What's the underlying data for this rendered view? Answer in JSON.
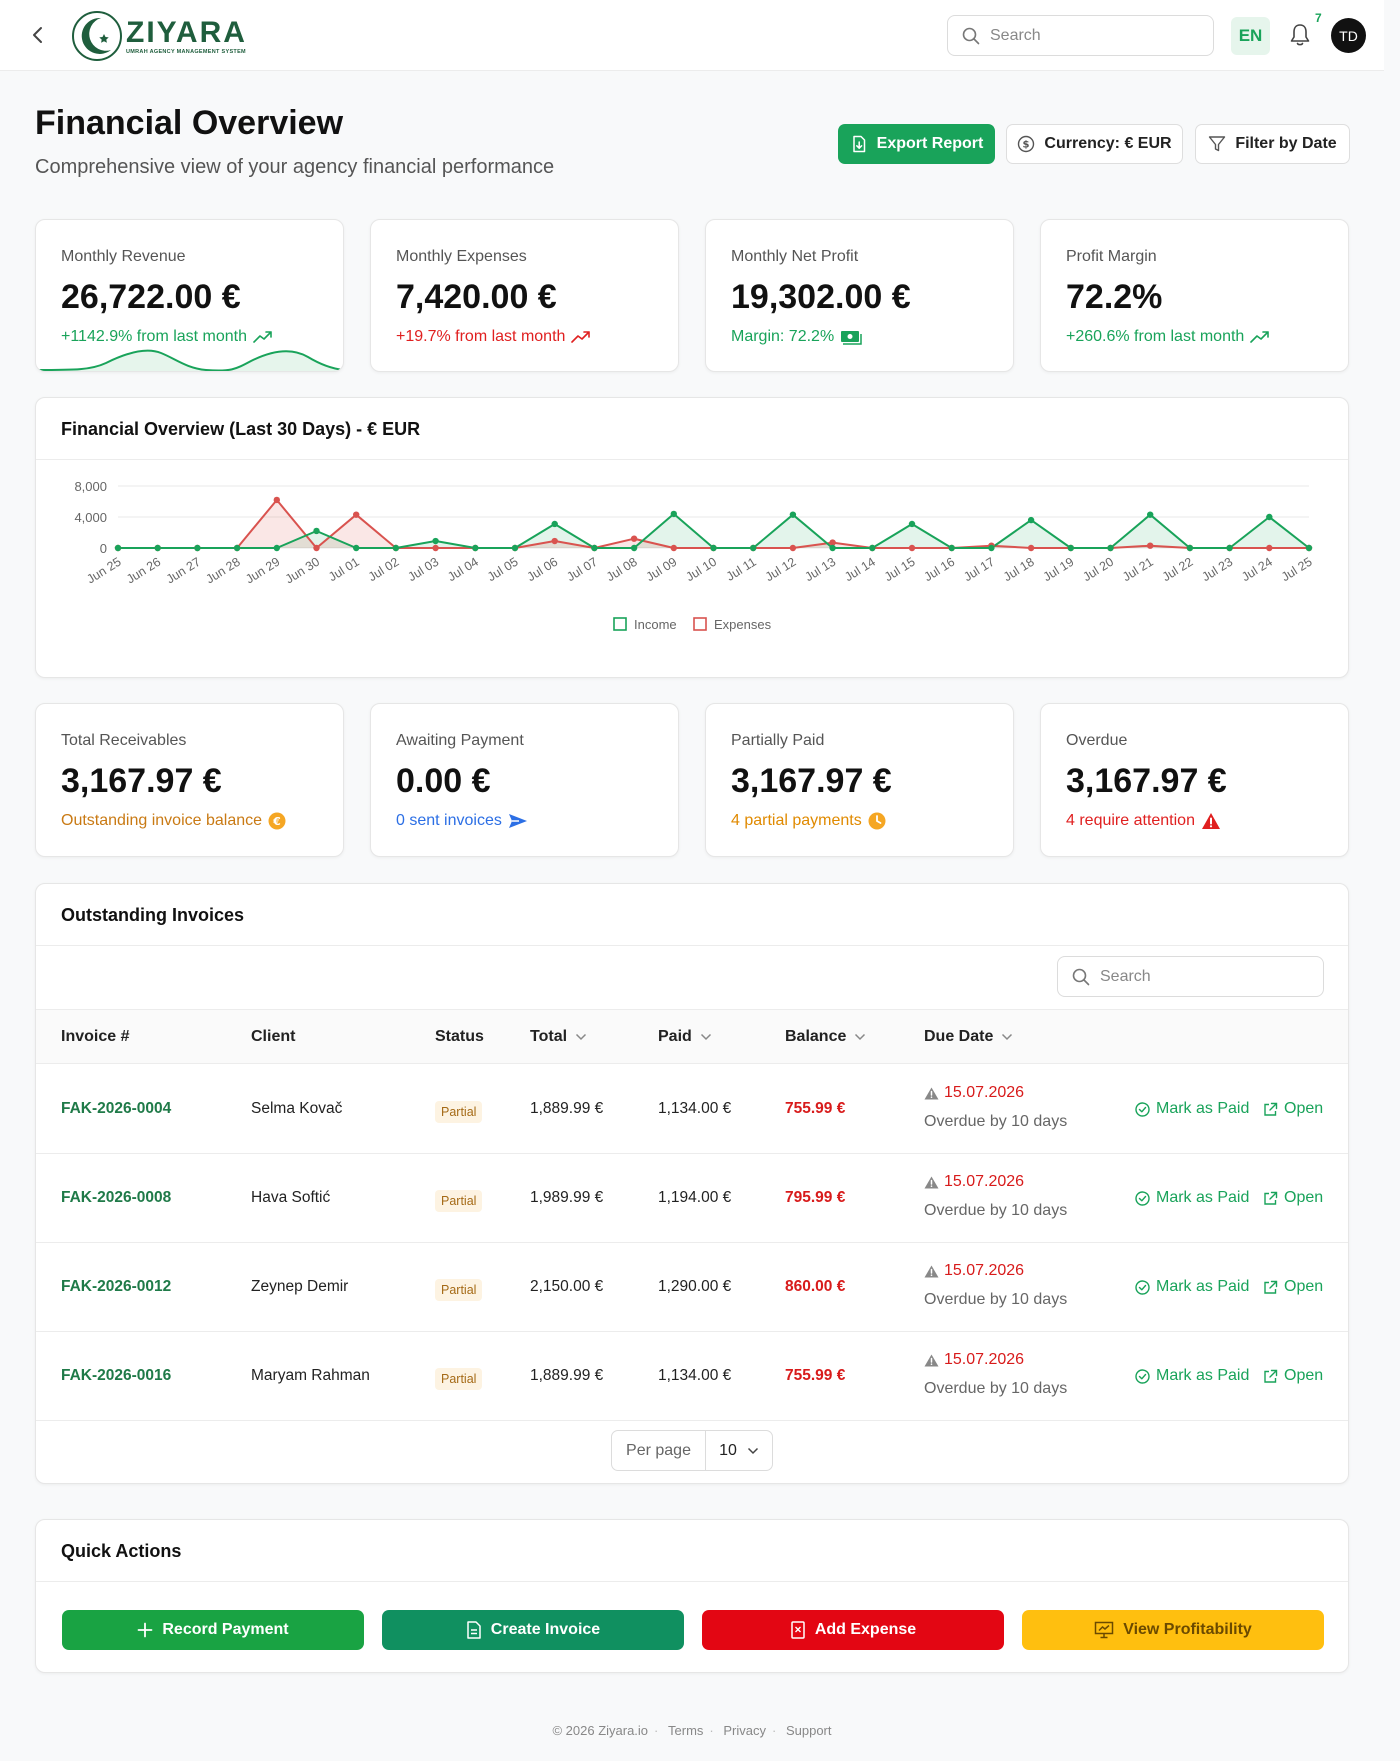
{
  "header": {
    "logo_word": "ZIYARA",
    "logo_subtitle": "UMRAH AGENCY MANAGEMENT SYSTEM",
    "search_placeholder": "Search",
    "language": "EN",
    "notification_count": "7",
    "avatar_initials": "TD"
  },
  "page": {
    "title": "Financial Overview",
    "subtitle": "Comprehensive view of your agency financial performance",
    "export_label": "Export Report",
    "currency_label": "Currency: € EUR",
    "filter_label": "Filter by Date"
  },
  "stats": [
    {
      "label": "Monthly Revenue",
      "value": "26,722.00 €",
      "note": "+1142.9% from last month",
      "note_color": "#19a35a"
    },
    {
      "label": "Monthly Expenses",
      "value": "7,420.00 €",
      "note": "+19.7% from last month",
      "note_color": "#e02020"
    },
    {
      "label": "Monthly Net Profit",
      "value": "19,302.00 €",
      "note": "Margin: 72.2%",
      "note_color": "#19a35a"
    },
    {
      "label": "Profit Margin",
      "value": "72.2%",
      "note": "+260.6% from last month",
      "note_color": "#19a35a"
    }
  ],
  "chart": {
    "title": "Financial Overview (Last 30 Days) - € EUR"
  },
  "chart_data": {
    "type": "line",
    "x": [
      "Jun 25",
      "Jun 26",
      "Jun 27",
      "Jun 28",
      "Jun 29",
      "Jun 30",
      "Jul 01",
      "Jul 02",
      "Jul 03",
      "Jul 04",
      "Jul 05",
      "Jul 06",
      "Jul 07",
      "Jul 08",
      "Jul 09",
      "Jul 10",
      "Jul 11",
      "Jul 12",
      "Jul 13",
      "Jul 14",
      "Jul 15",
      "Jul 16",
      "Jul 17",
      "Jul 18",
      "Jul 19",
      "Jul 20",
      "Jul 21",
      "Jul 22",
      "Jul 23",
      "Jul 24",
      "Jul 25"
    ],
    "series": [
      {
        "name": "Income",
        "color": "#19a35a",
        "values": [
          0,
          0,
          0,
          0,
          0,
          2200,
          0,
          0,
          900,
          0,
          0,
          3100,
          0,
          0,
          4400,
          0,
          0,
          4300,
          0,
          0,
          3100,
          0,
          0,
          3600,
          0,
          0,
          4300,
          0,
          0,
          4000,
          0
        ]
      },
      {
        "name": "Expenses",
        "color": "#d9534f",
        "values": [
          0,
          0,
          0,
          0,
          6200,
          0,
          4300,
          0,
          0,
          0,
          0,
          900,
          0,
          1200,
          0,
          0,
          0,
          0,
          700,
          0,
          0,
          0,
          300,
          0,
          0,
          0,
          300,
          0,
          0,
          0,
          0
        ]
      }
    ],
    "yticks": [
      "8,000",
      "4,000",
      "0"
    ],
    "ylim": [
      0,
      8000
    ],
    "legend": "bottom-center",
    "grid": true
  },
  "receivables": [
    {
      "label": "Total Receivables",
      "value": "3,167.97 €",
      "note": "Outstanding invoice balance",
      "note_color": "#c97a14"
    },
    {
      "label": "Awaiting Payment",
      "value": "0.00 €",
      "note": "0 sent invoices",
      "note_color": "#2c6fe5"
    },
    {
      "label": "Partially Paid",
      "value": "3,167.97 €",
      "note": "4 partial payments",
      "note_color": "#e08a00"
    },
    {
      "label": "Overdue",
      "value": "3,167.97 €",
      "note": "4 require attention",
      "note_color": "#e02020"
    }
  ],
  "invoices": {
    "title": "Outstanding Invoices",
    "search_placeholder": "Search",
    "columns": {
      "invoice": "Invoice #",
      "client": "Client",
      "status": "Status",
      "total": "Total",
      "paid": "Paid",
      "balance": "Balance",
      "due": "Due Date"
    },
    "rows": [
      {
        "id": "FAK-2026-0004",
        "client": "Selma Kovač",
        "status": "Partial",
        "total": "1,889.99 €",
        "paid": "1,134.00 €",
        "balance": "755.99 €",
        "due": "15.07.2026",
        "overdue": "Overdue by 10 days"
      },
      {
        "id": "FAK-2026-0008",
        "client": "Hava Softić",
        "status": "Partial",
        "total": "1,989.99 €",
        "paid": "1,194.00 €",
        "balance": "795.99 €",
        "due": "15.07.2026",
        "overdue": "Overdue by 10 days"
      },
      {
        "id": "FAK-2026-0012",
        "client": "Zeynep Demir",
        "status": "Partial",
        "total": "2,150.00 €",
        "paid": "1,290.00 €",
        "balance": "860.00 €",
        "due": "15.07.2026",
        "overdue": "Overdue by 10 days"
      },
      {
        "id": "FAK-2026-0016",
        "client": "Maryam Rahman",
        "status": "Partial",
        "total": "1,889.99 €",
        "paid": "1,134.00 €",
        "balance": "755.99 €",
        "due": "15.07.2026",
        "overdue": "Overdue by 10 days"
      }
    ],
    "mark_paid_label": "Mark as Paid",
    "open_label": "Open",
    "per_page_label": "Per page",
    "per_page_value": "10"
  },
  "quick_actions": {
    "title": "Quick Actions",
    "buttons": [
      {
        "label": "Record Payment",
        "color": "#19a343",
        "icon": "plus-icon"
      },
      {
        "label": "Create Invoice",
        "color": "#109060",
        "icon": "document-icon"
      },
      {
        "label": "Add Expense",
        "color": "#e30613",
        "icon": "receipt-icon"
      },
      {
        "label": "View Profitability",
        "color": "#ffbf0f",
        "icon": "chart-board-icon"
      }
    ]
  },
  "footer": {
    "copyright": "© 2026 Ziyara.io",
    "terms": "Terms",
    "privacy": "Privacy",
    "support": "Support"
  }
}
